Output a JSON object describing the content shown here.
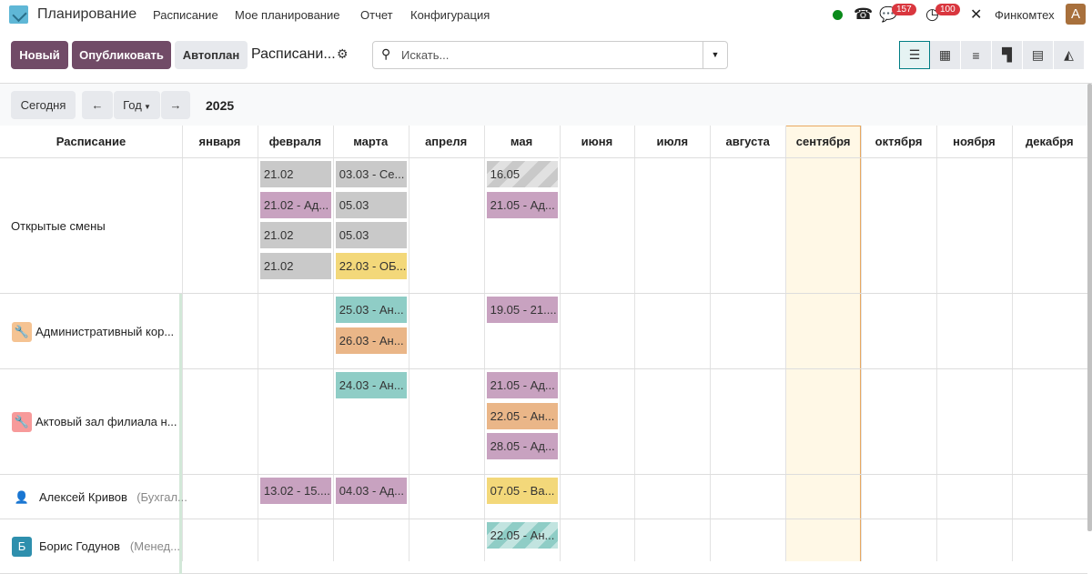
{
  "app": {
    "name": "Планирование",
    "menu": [
      "Расписание",
      "Мое планирование",
      "Отчет",
      "Конфигурация"
    ],
    "systray": {
      "messages_count": "157",
      "activities_count": "100",
      "company": "Финкомтех",
      "avatar_letter": "A",
      "status_color": "#0a8a1a"
    }
  },
  "control": {
    "new": "Новый",
    "publish": "Опубликовать",
    "autoplan": "Автоплан",
    "view_title": "Расписани...",
    "search_placeholder": "Искать...",
    "views": [
      "gantt",
      "calendar",
      "list",
      "kanban",
      "pivot",
      "graph"
    ],
    "active_view": "gantt"
  },
  "toolbar": {
    "today": "Сегодня",
    "scale": "Год",
    "year": "2025"
  },
  "gantt": {
    "header_label": "Расписание",
    "months": [
      "января",
      "февраля",
      "марта",
      "апреля",
      "мая",
      "июня",
      "июля",
      "августа",
      "сентября",
      "октября",
      "ноября",
      "декабря"
    ],
    "current_month_index": 8,
    "colors": {
      "gray": "#c9c9c9",
      "purple": "#c8a2c0",
      "yellow": "#f3d87a",
      "teal": "#8fcdc6",
      "orange": "#eab688"
    },
    "rows": [
      {
        "name": "Открытые смены",
        "sub": "",
        "icon": "none",
        "pills": [
          {
            "m": 1,
            "slot": 0,
            "text": "21.02",
            "color": "gray"
          },
          {
            "m": 1,
            "slot": 1,
            "text": "21.02 - Ад...",
            "color": "purple"
          },
          {
            "m": 1,
            "slot": 2,
            "text": "21.02",
            "color": "gray"
          },
          {
            "m": 1,
            "slot": 3,
            "text": "21.02",
            "color": "gray"
          },
          {
            "m": 2,
            "slot": 0,
            "text": "03.03 - Се...",
            "color": "gray"
          },
          {
            "m": 2,
            "slot": 1,
            "text": "05.03",
            "color": "gray"
          },
          {
            "m": 2,
            "slot": 2,
            "text": "05.03",
            "color": "gray"
          },
          {
            "m": 2,
            "slot": 3,
            "text": "22.03 - ОБ...",
            "color": "yellow"
          },
          {
            "m": 4,
            "slot": 0,
            "text": "16.05",
            "color": "gray",
            "striped": true
          },
          {
            "m": 4,
            "slot": 1,
            "text": "21.05 - Ад...",
            "color": "purple"
          }
        ]
      },
      {
        "name": "Административный кор...",
        "sub": "",
        "icon": "wrench",
        "icon_bg": "#f5c392",
        "pills": [
          {
            "m": 2,
            "slot": 0,
            "text": "25.03 - Ан...",
            "color": "teal"
          },
          {
            "m": 2,
            "slot": 1,
            "text": "26.03 - Ан...",
            "color": "orange"
          },
          {
            "m": 4,
            "slot": 0,
            "text": "19.05 - 21....",
            "color": "purple"
          }
        ]
      },
      {
        "name": "Актовый зал филиала н...",
        "sub": "",
        "icon": "wrench",
        "icon_bg": "#f79a9a",
        "pills": [
          {
            "m": 2,
            "slot": 0,
            "text": "24.03 - Ан...",
            "color": "teal"
          },
          {
            "m": 4,
            "slot": 0,
            "text": "21.05 - Ад...",
            "color": "purple"
          },
          {
            "m": 4,
            "slot": 1,
            "text": "22.05 - Ан...",
            "color": "orange"
          },
          {
            "m": 4,
            "slot": 2,
            "text": "28.05 - Ад...",
            "color": "purple"
          }
        ]
      },
      {
        "name": "Алексей Кривов",
        "sub": "(Бухгал...",
        "icon": "person",
        "pills": [
          {
            "m": 1,
            "slot": 0,
            "text": "13.02 - 15....",
            "color": "purple"
          },
          {
            "m": 2,
            "slot": 0,
            "text": "04.03 - Ад...",
            "color": "purple"
          },
          {
            "m": 4,
            "slot": 0,
            "text": "07.05 - Ва...",
            "color": "yellow"
          }
        ]
      },
      {
        "name": "Борис Годунов",
        "sub": "(Менед...",
        "icon": "letter",
        "letter": "Б",
        "icon_bg": "#2e8fad",
        "pills": [
          {
            "m": 4,
            "slot": 0,
            "text": "22.05 - Ан...",
            "color": "teal",
            "striped": true
          }
        ]
      }
    ]
  }
}
